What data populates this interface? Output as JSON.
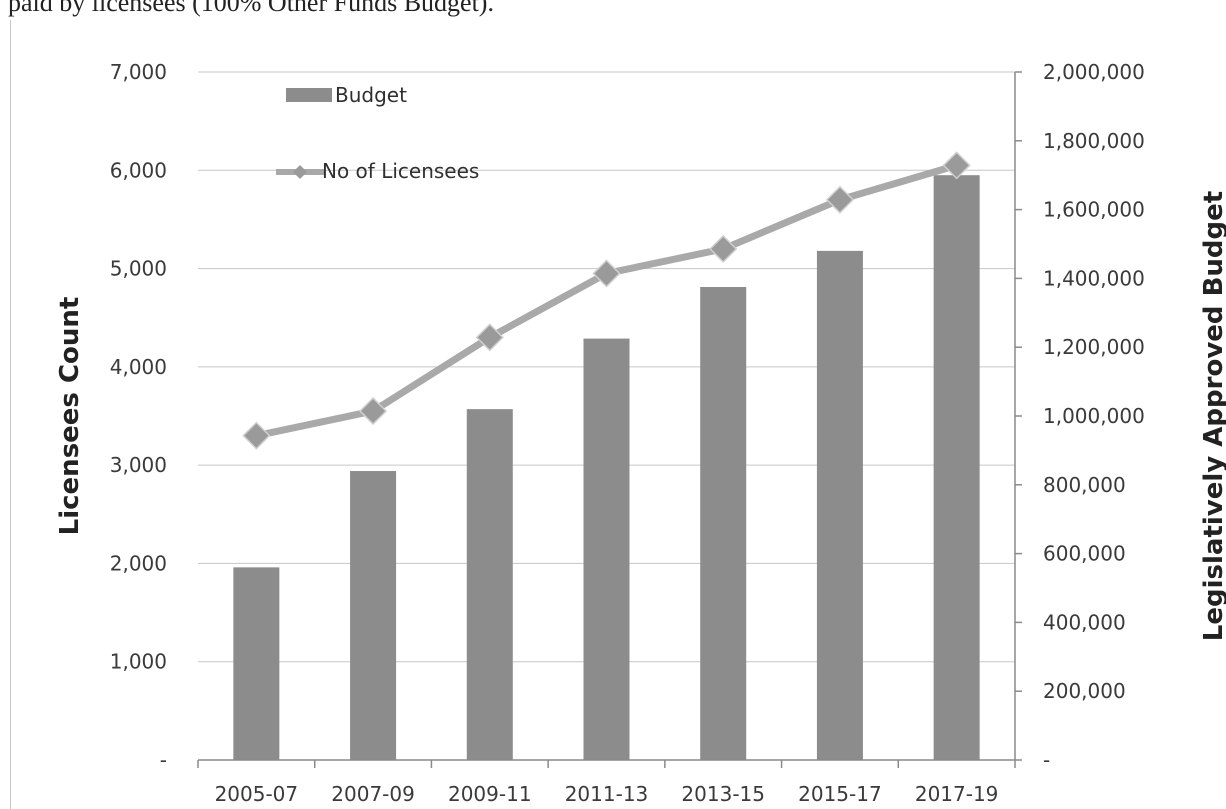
{
  "document": {
    "text": "paid by licensees (100% Other Funds Budget)."
  },
  "chart_data": {
    "type": "bar+line",
    "categories": [
      "2005-07",
      "2007-09",
      "2009-11",
      "2011-13",
      "2013-15",
      "2015-17",
      "2017-19"
    ],
    "series": [
      {
        "name": "Budget",
        "type": "bar",
        "axis": "right",
        "values": [
          560000,
          840000,
          1020000,
          1225000,
          1375000,
          1480000,
          1700000
        ]
      },
      {
        "name": "No of Licensees",
        "type": "line",
        "axis": "left",
        "values": [
          3300,
          3550,
          4300,
          4950,
          5200,
          5700,
          6050
        ]
      }
    ],
    "left_axis": {
      "label": "Licensees Count",
      "ylim": [
        0,
        7000
      ],
      "ticks": [
        "-",
        "1,000",
        "2,000",
        "3,000",
        "4,000",
        "5,000",
        "6,000",
        "7,000"
      ]
    },
    "right_axis": {
      "label": "Legislatively Approved Budget",
      "ylim": [
        0,
        2000000
      ],
      "ticks": [
        "-",
        "200,000",
        "400,000",
        "600,000",
        "800,000",
        "1,000,000",
        "1,200,000",
        "1,400,000",
        "1,600,000",
        "1,800,000",
        "2,000,000"
      ]
    },
    "grid": true,
    "legend_position": "top-left",
    "colors": {
      "bar": "#8c8c8c",
      "line": "#a9a9a9",
      "marker": "#9a9a9a",
      "grid": "#c6c6c6"
    }
  }
}
